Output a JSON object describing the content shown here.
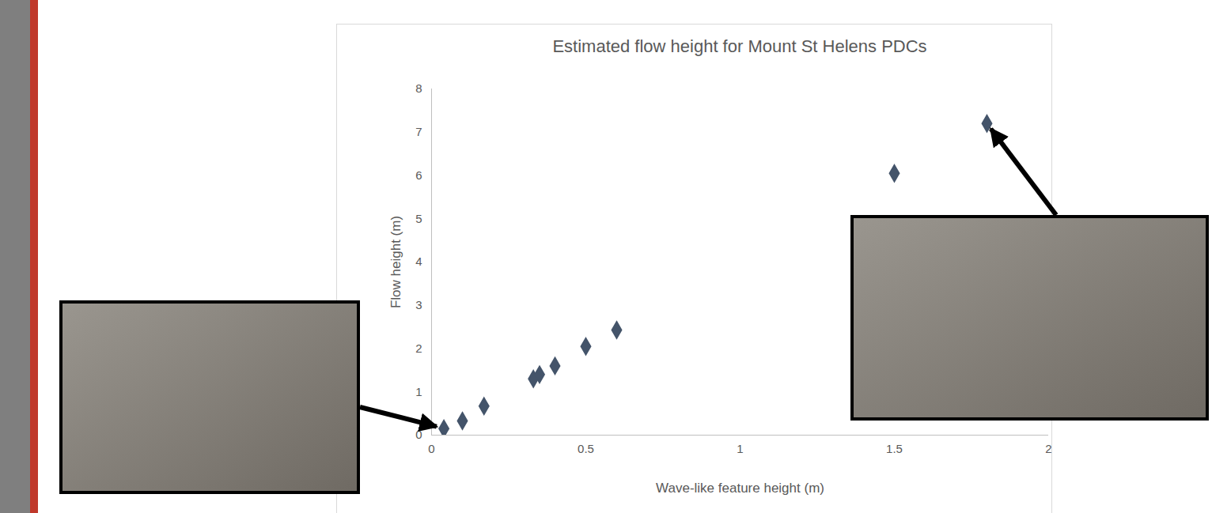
{
  "chart_data": {
    "type": "scatter",
    "title": "Estimated flow height for Mount St Helens PDCs",
    "xlabel": "Wave-like feature height (m)",
    "ylabel": "Flow height (m)",
    "x": [
      0.04,
      0.1,
      0.17,
      0.33,
      0.35,
      0.4,
      0.5,
      0.6,
      1.5,
      1.8
    ],
    "values": [
      0.15,
      0.33,
      0.67,
      1.3,
      1.4,
      1.6,
      2.05,
      2.43,
      6.05,
      7.2
    ],
    "xlim": [
      0,
      2
    ],
    "ylim": [
      0,
      8
    ],
    "xticks": [
      0,
      0.5,
      1,
      1.5,
      2
    ],
    "yticks": [
      0,
      1,
      2,
      3,
      4,
      5,
      6,
      7,
      8
    ],
    "grid": false,
    "marker": "diamond",
    "color": "#44546a"
  }
}
